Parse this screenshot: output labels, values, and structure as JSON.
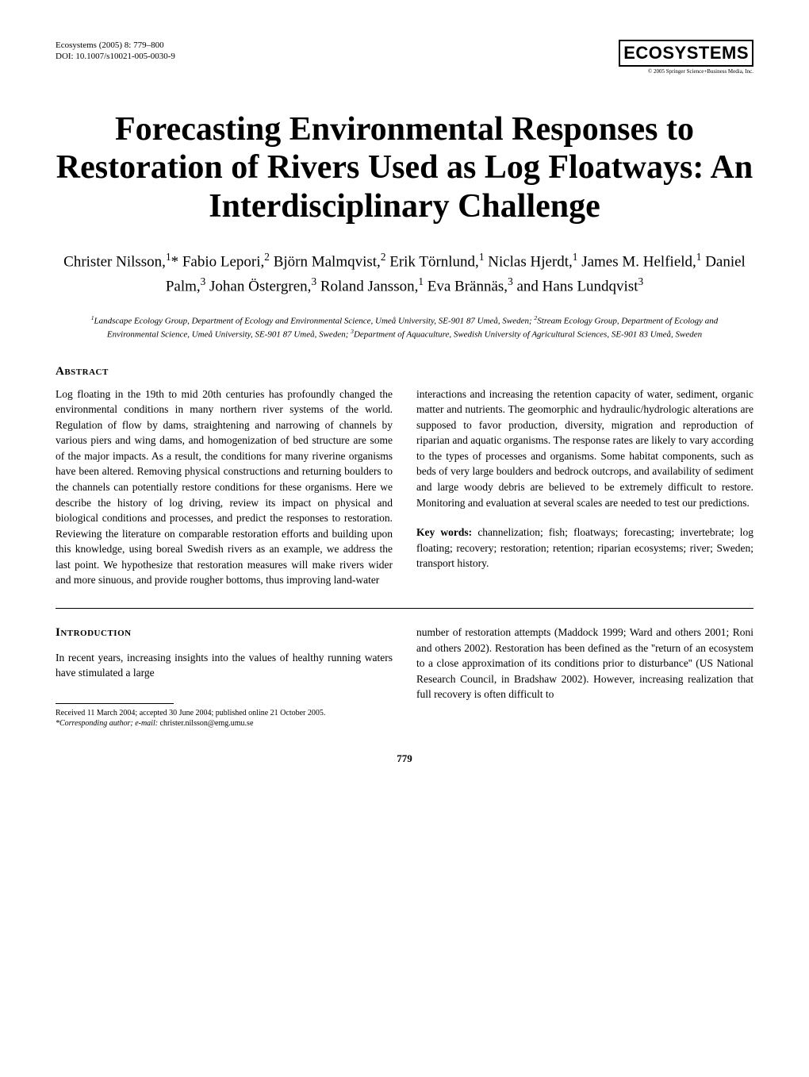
{
  "header": {
    "journal_line": "Ecosystems (2005) 8: 779–800",
    "doi_line": "DOI: 10.1007/s10021-005-0030-9",
    "logo_text": "ECOSYSTEMS",
    "logo_sub": "© 2005 Springer Science+Business Media, Inc."
  },
  "title": "Forecasting Environmental Responses to Restoration of Rivers Used as Log Floatways: An Interdisciplinary Challenge",
  "authors_html": "Christer Nilsson,<sup>1</sup>* Fabio Lepori,<sup>2</sup> Björn Malmqvist,<sup>2</sup> Erik Törnlund,<sup>1</sup> Niclas Hjerdt,<sup>1</sup> James M. Helfield,<sup>1</sup> Daniel Palm,<sup>3</sup> Johan Östergren,<sup>3</sup> Roland Jansson,<sup>1</sup> Eva Brännäs,<sup>3</sup> and Hans Lundqvist<sup>3</sup>",
  "affiliations_html": "<sup>1</sup>Landscape Ecology Group, Department of Ecology and Environmental Science, Umeå University, SE-901 87 Umeå, Sweden; <sup>2</sup>Stream Ecology Group, Department of Ecology and Environmental Science, Umeå University, SE-901 87 Umeå, Sweden; <sup>3</sup>Department of Aquaculture, Swedish University of Agricultural Sciences, SE-901 83 Umeå, Sweden",
  "abstract": {
    "heading": "Abstract",
    "left": "Log floating in the 19th to mid 20th centuries has profoundly changed the environmental conditions in many northern river systems of the world. Regulation of flow by dams, straightening and narrowing of channels by various piers and wing dams, and homogenization of bed structure are some of the major impacts. As a result, the conditions for many riverine organisms have been altered. Removing physical constructions and returning boulders to the channels can potentially restore conditions for these organisms. Here we describe the history of log driving, review its impact on physical and biological conditions and processes, and predict the responses to restoration. Reviewing the literature on comparable restoration efforts and building upon this knowledge, using boreal Swedish rivers as an example, we address the last point. We hypothesize that restoration measures will make rivers wider and more sinuous, and provide rougher bottoms, thus improving land-water",
    "right": "interactions and increasing the retention capacity of water, sediment, organic matter and nutrients. The geomorphic and hydraulic/hydrologic alterations are supposed to favor production, diversity, migration and reproduction of riparian and aquatic organisms. The response rates are likely to vary according to the types of processes and organisms. Some habitat components, such as beds of very large boulders and bedrock outcrops, and availability of sediment and large woody debris are believed to be extremely difficult to restore. Monitoring and evaluation at several scales are needed to test our predictions."
  },
  "keywords": {
    "label": "Key words:",
    "text": " channelization; fish; floatways; forecasting; invertebrate; log floating; recovery; restoration; retention; riparian ecosystems; river; Sweden; transport history."
  },
  "introduction": {
    "heading": "Introduction",
    "left": "In recent years, increasing insights into the values of healthy running waters have stimulated a large",
    "right": "number of restoration attempts (Maddock 1999; Ward and others 2001; Roni and others 2002). Restoration has been defined as the ''return of an ecosystem to a close approximation of its conditions prior to disturbance'' (US National Research Council, in Bradshaw 2002). However, increasing realization that full recovery is often difficult to"
  },
  "footnotes": {
    "received": "Received 11 March 2004; accepted 30 June 2004; published online 21 October 2005.",
    "corresponding_label": "*Corresponding author; e-mail:",
    "corresponding_email": " christer.nilsson@emg.umu.se"
  },
  "page_number": "779"
}
